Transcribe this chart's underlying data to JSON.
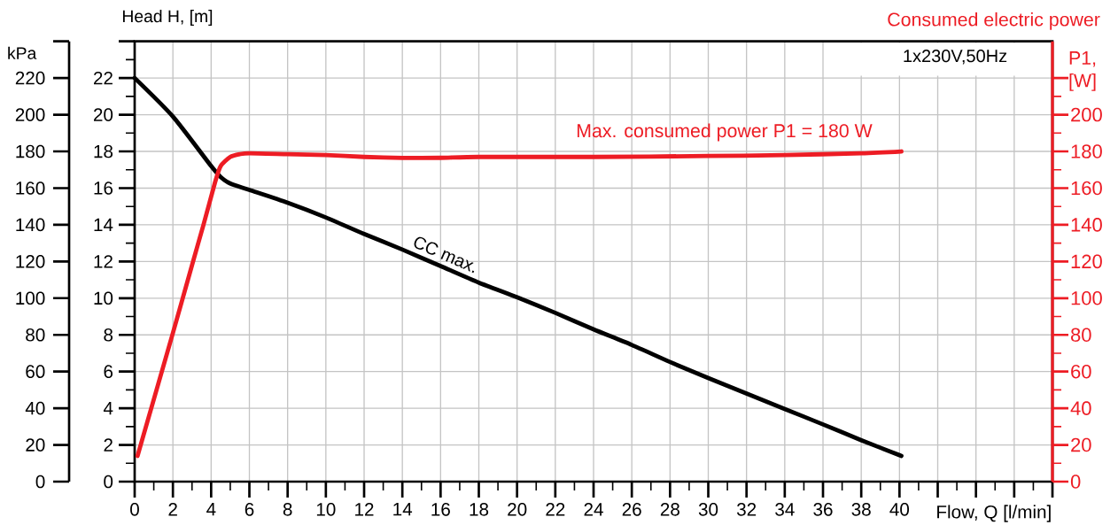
{
  "chart_data": {
    "type": "line",
    "xlabel": "Flow, Q [l/min]",
    "ylabel": "Head H, [m]",
    "y2label": "P1, [W]",
    "y3label": "kPa",
    "annotations": [
      "1x230V,50Hz",
      "Max. consumed power P1 = 180 W"
    ],
    "xlim": [
      0,
      48
    ],
    "xticks": [
      0,
      2,
      4,
      6,
      8,
      10,
      12,
      14,
      16,
      18,
      20,
      22,
      24,
      26,
      28,
      30,
      32,
      34,
      36,
      38,
      40,
      {
        "value": 42,
        "label": null
      },
      {
        "value": 44,
        "label": null
      },
      {
        "value": 46,
        "label": null
      },
      {
        "value": 48,
        "label": null
      }
    ],
    "ylim": [
      0,
      24
    ],
    "yticks": [
      0,
      2,
      4,
      6,
      8,
      10,
      12,
      14,
      16,
      18,
      20,
      22,
      {
        "value": 24,
        "label": null
      }
    ],
    "y2lim": [
      0,
      240
    ],
    "y2ticks": [
      0,
      20,
      40,
      60,
      80,
      100,
      120,
      140,
      160,
      180,
      200,
      {
        "value": 220,
        "label": null
      }
    ],
    "y3lim": [
      0,
      240
    ],
    "y3ticks": [
      0,
      20,
      40,
      60,
      80,
      100,
      120,
      140,
      160,
      180,
      200,
      220,
      {
        "value": 240,
        "label": null
      }
    ],
    "grid": true,
    "legend": false,
    "marker": "none",
    "line_style": "solid",
    "series": [
      {
        "name": "CC max.",
        "color": "#000000",
        "x": [
          0,
          2,
          4,
          4.5,
          5,
          6,
          8,
          10,
          12,
          14,
          16,
          18,
          20,
          22,
          24,
          26,
          28,
          30,
          32,
          34,
          36,
          38,
          40.1
        ],
        "values": [
          22,
          19.9,
          17.2,
          16.6,
          16.25,
          15.9,
          15.2,
          14.4,
          13.5,
          12.65,
          11.75,
          10.85,
          10.05,
          9.2,
          8.3,
          7.45,
          6.52,
          5.65,
          4.8,
          3.96,
          3.12,
          2.26,
          1.4
        ]
      },
      {
        "name": "Consumed electric power",
        "color": "#ed1c24",
        "axis": "y2",
        "x": [
          0.15,
          2,
          3,
          3.6,
          4.2,
          4.5,
          5,
          5.5,
          6,
          8,
          10,
          12,
          14,
          16,
          18,
          24,
          30,
          34,
          38,
          40.1
        ],
        "values": [
          14,
          81,
          118,
          140,
          163,
          172,
          177,
          178.5,
          179,
          178.5,
          178,
          177,
          176.5,
          176.5,
          177,
          177,
          177.5,
          178,
          179,
          180
        ]
      }
    ]
  }
}
